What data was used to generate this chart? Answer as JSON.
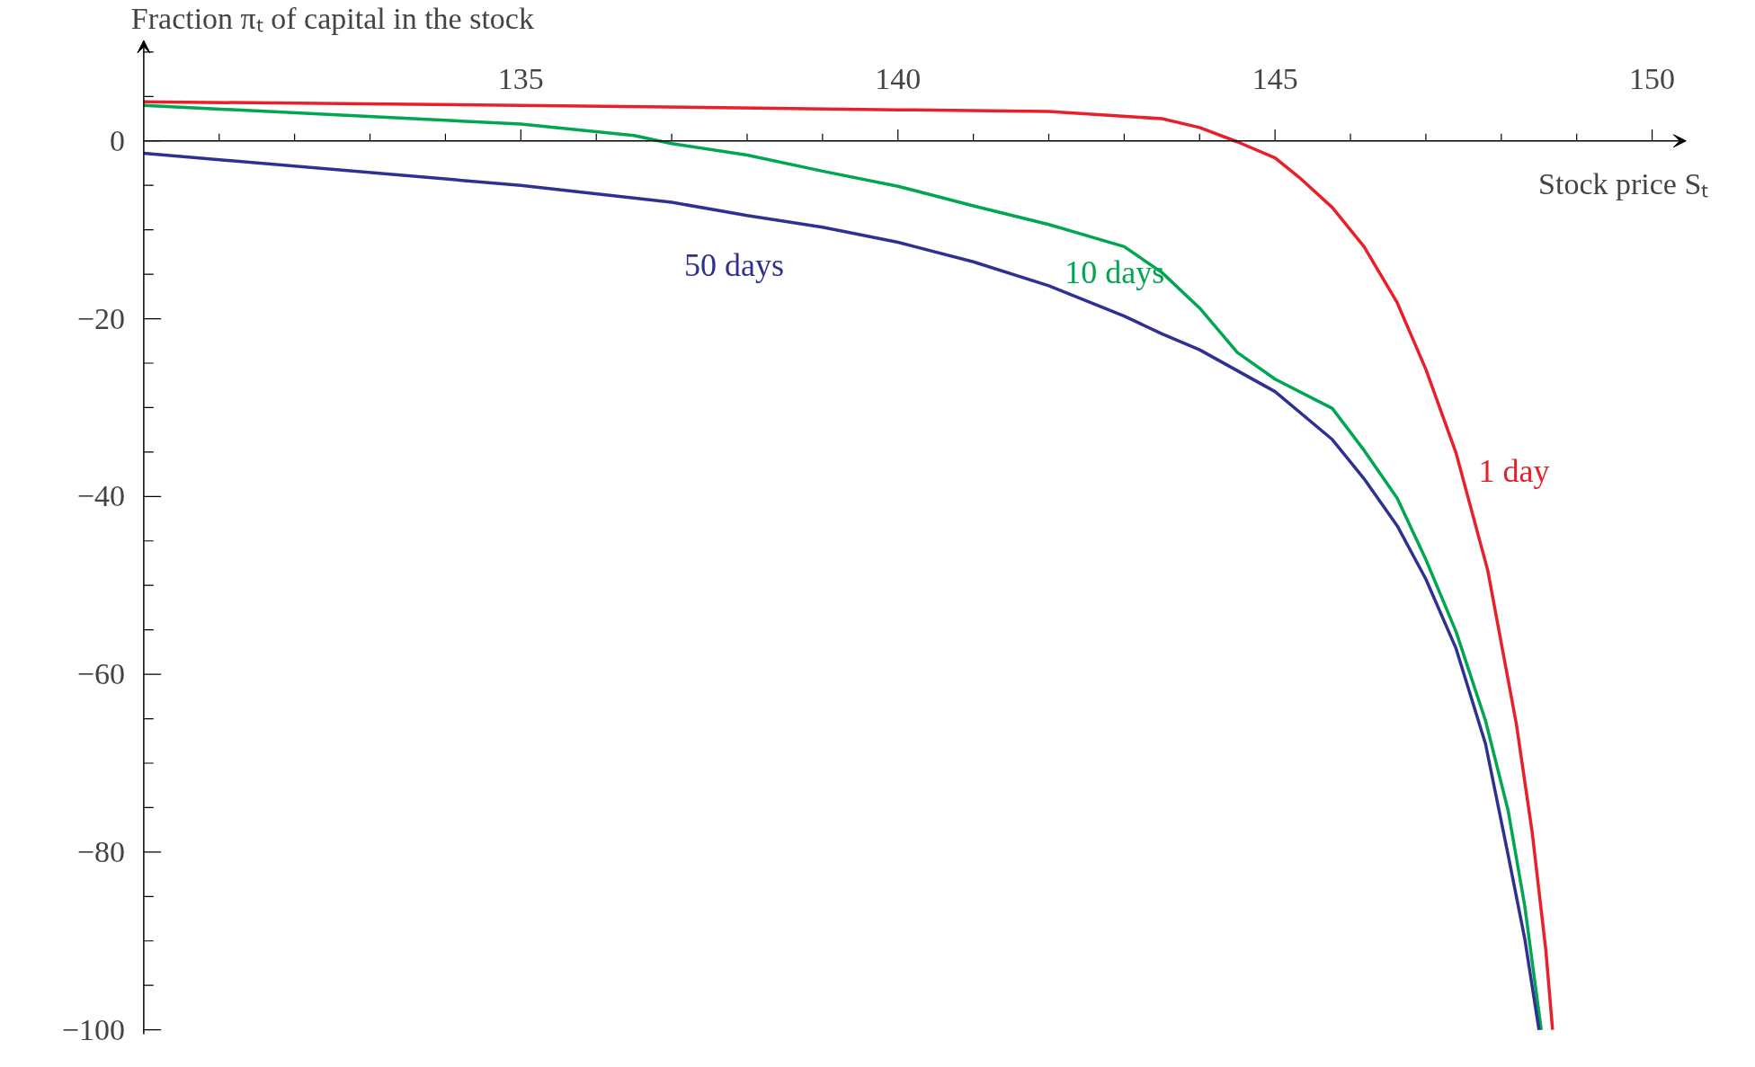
{
  "chart_data": {
    "type": "line",
    "title": "Fraction πₜ of capital in the stock",
    "xlabel": "Stock price Sₜ",
    "xlim": [
      130,
      150.45
    ],
    "ylim": [
      -100.5,
      11.3
    ],
    "grid": false,
    "marker": "none",
    "line_style": "solid",
    "xticks": [
      {
        "value": 131,
        "label": null
      },
      {
        "value": 132,
        "label": null
      },
      {
        "value": 133,
        "label": null
      },
      {
        "value": 134,
        "label": null
      },
      135,
      {
        "value": 136,
        "label": null
      },
      {
        "value": 137,
        "label": null
      },
      {
        "value": 138,
        "label": null
      },
      {
        "value": 139,
        "label": null
      },
      140,
      {
        "value": 141,
        "label": null
      },
      {
        "value": 142,
        "label": null
      },
      {
        "value": 143,
        "label": null
      },
      {
        "value": 144,
        "label": null
      },
      145,
      {
        "value": 146,
        "label": null
      },
      {
        "value": 147,
        "label": null
      },
      {
        "value": 148,
        "label": null
      },
      {
        "value": 149,
        "label": null
      },
      150
    ],
    "yticks": [
      {
        "value": 10,
        "label": null
      },
      {
        "value": 5,
        "label": null
      },
      0,
      {
        "value": -5,
        "label": null
      },
      {
        "value": -10,
        "label": null
      },
      {
        "value": -15,
        "label": null
      },
      {
        "value": -20,
        "label": "−20"
      },
      {
        "value": -25,
        "label": null
      },
      {
        "value": -30,
        "label": null
      },
      {
        "value": -35,
        "label": null
      },
      {
        "value": -40,
        "label": "−40"
      },
      {
        "value": -45,
        "label": null
      },
      {
        "value": -50,
        "label": null
      },
      {
        "value": -55,
        "label": null
      },
      {
        "value": -60,
        "label": "−60"
      },
      {
        "value": -65,
        "label": null
      },
      {
        "value": -70,
        "label": null
      },
      {
        "value": -75,
        "label": null
      },
      {
        "value": -80,
        "label": "−80"
      },
      {
        "value": -85,
        "label": null
      },
      {
        "value": -90,
        "label": null
      },
      {
        "value": -95,
        "label": null
      },
      {
        "value": -100,
        "label": "−100"
      }
    ],
    "series": [
      {
        "name": "1 day",
        "color": "#e8202a",
        "x": [
          130,
          135,
          140,
          142,
          143.5,
          144,
          144.5,
          145,
          145.32,
          145.76,
          146.18,
          146.62,
          147.0,
          147.4,
          147.82,
          148.2,
          148.41,
          148.59,
          148.68
        ],
        "values": [
          4.4,
          4.0,
          3.5,
          3.3,
          2.5,
          1.5,
          -0.1,
          -1.9,
          -4.1,
          -7.5,
          -11.9,
          -18.2,
          -25.7,
          -35.1,
          -48.3,
          -65.6,
          -77.8,
          -91,
          -100
        ]
      },
      {
        "name": "10 days",
        "color": "#00a651",
        "x": [
          130,
          135,
          136.5,
          137,
          138,
          139,
          140,
          141,
          142,
          143,
          143.5,
          144,
          144.5,
          145,
          145.76,
          146.18,
          146.62,
          147.0,
          147.4,
          147.79,
          148.09,
          148.31,
          148.53
        ],
        "values": [
          4.0,
          1.9,
          0.6,
          -0.3,
          -1.6,
          -3.4,
          -5.1,
          -7.3,
          -9.4,
          -11.9,
          -14.8,
          -18.8,
          -23.8,
          -26.8,
          -30.1,
          -34.8,
          -40.2,
          -47.1,
          -55.2,
          -65.2,
          -75.3,
          -86,
          -100
        ]
      },
      {
        "name": "50 days",
        "color": "#2e3192",
        "x": [
          130,
          135,
          137,
          138,
          139,
          140,
          141,
          142,
          143,
          143.5,
          144,
          145,
          145.76,
          146.18,
          146.62,
          147.0,
          147.4,
          147.79,
          148.09,
          148.31,
          148.5
        ],
        "values": [
          -1.4,
          -5.0,
          -6.9,
          -8.4,
          -9.7,
          -11.4,
          -13.6,
          -16.3,
          -19.7,
          -21.7,
          -23.5,
          -28.2,
          -33.6,
          -38.0,
          -43.3,
          -49.3,
          -57.1,
          -67.8,
          -80.3,
          -89.7,
          -100
        ]
      }
    ]
  }
}
